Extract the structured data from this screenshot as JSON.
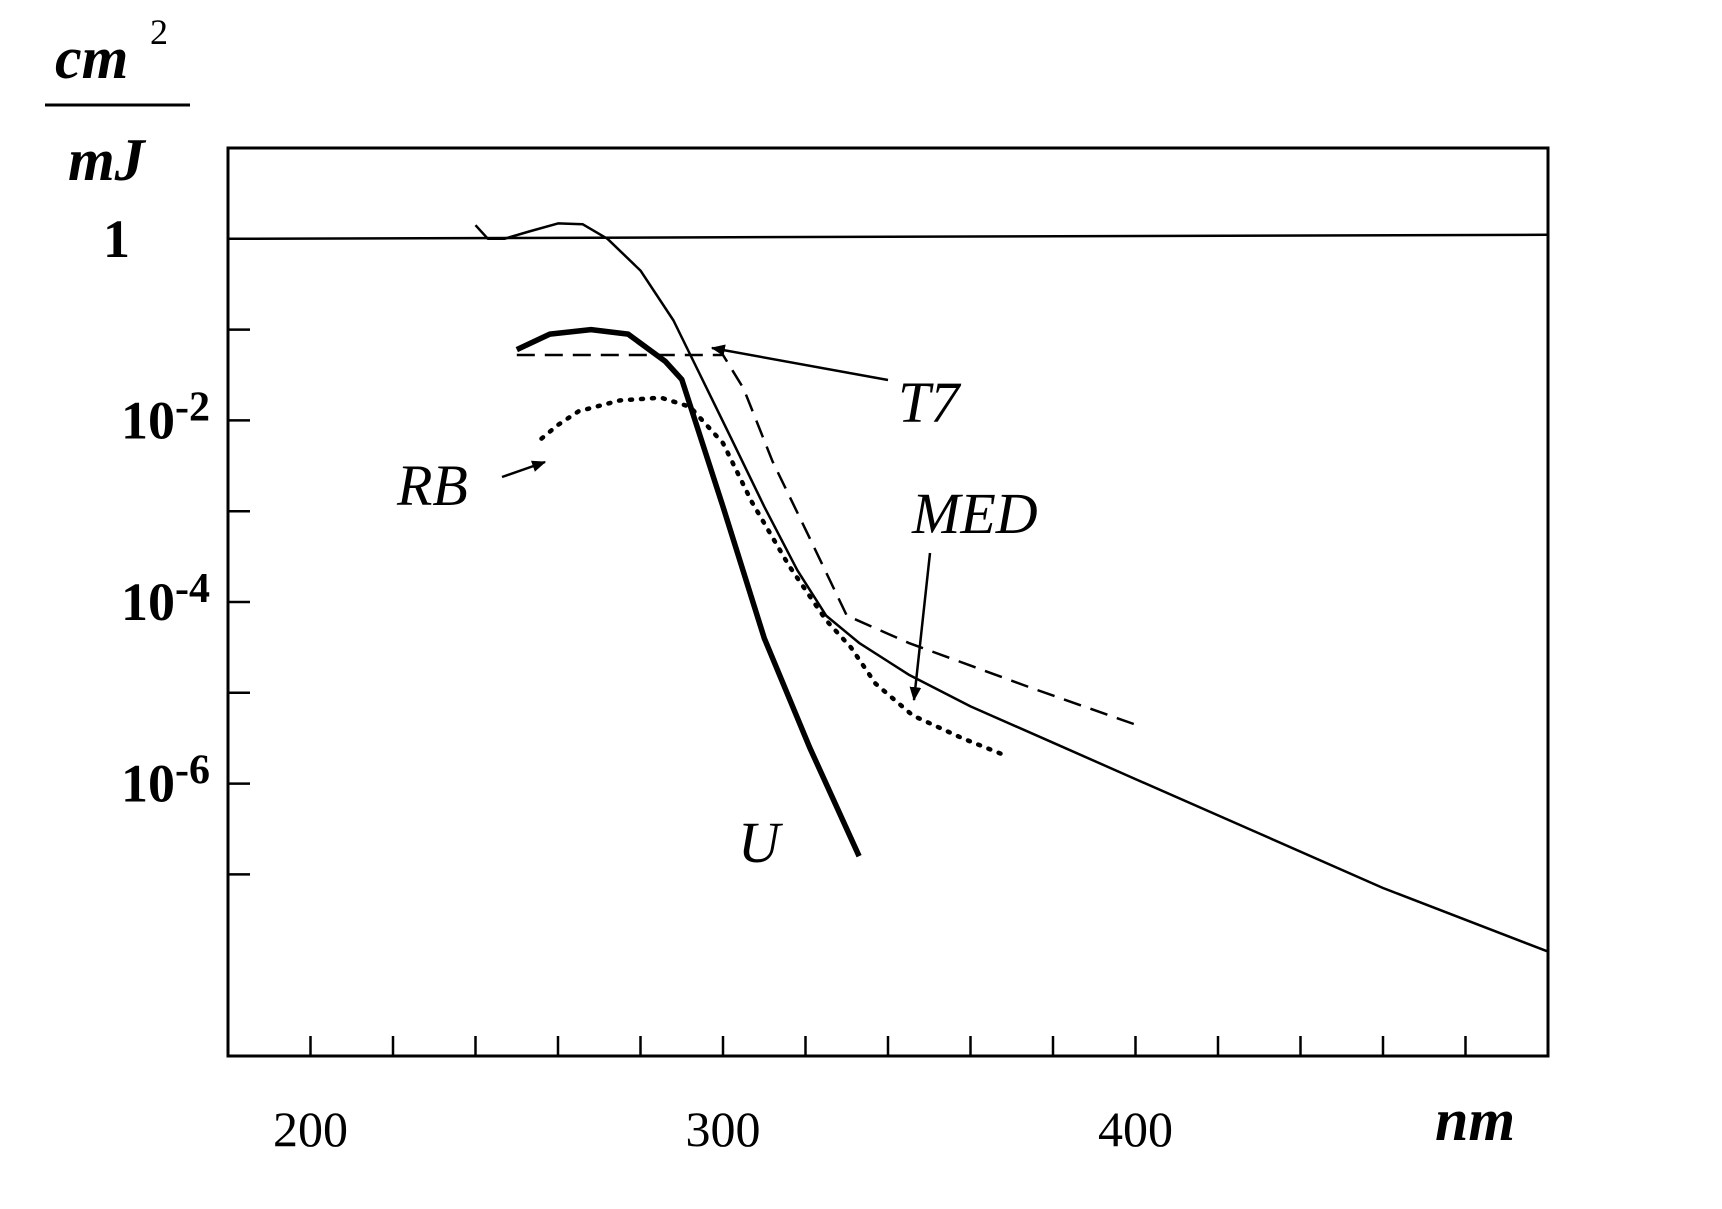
{
  "chart_data": {
    "type": "line",
    "title": "",
    "xlabel": "nm",
    "ylabel": {
      "numerator": "cm",
      "exponent": "2",
      "denominator": "mJ"
    },
    "xlim": [
      180,
      500
    ],
    "ylim_log10": [
      -9,
      1
    ],
    "y_scale": "log",
    "x_ticks": [
      {
        "value": 200,
        "label": "200"
      },
      {
        "value": 300,
        "label": "300"
      },
      {
        "value": 400,
        "label": "400"
      }
    ],
    "x_minor_ticks": [
      200,
      220,
      240,
      260,
      280,
      300,
      320,
      340,
      360,
      380,
      400,
      420,
      440,
      460,
      480
    ],
    "y_ticks": [
      {
        "log10": 0,
        "base": "1",
        "exp": ""
      },
      {
        "log10": -2,
        "base": "10",
        "exp": "-2"
      },
      {
        "log10": -4,
        "base": "10",
        "exp": "-4"
      },
      {
        "log10": -6,
        "base": "10",
        "exp": "-6"
      }
    ],
    "y_minor_ticks_log10": [
      -1,
      -3,
      -5,
      -7
    ],
    "reference_line_log10": 0,
    "grid": false,
    "series": [
      {
        "name": "T7",
        "style": "solid-thin",
        "x": [
          240,
          243,
          247,
          253,
          260,
          266,
          272,
          280,
          288,
          295,
          302,
          310,
          318,
          325,
          333,
          345,
          360,
          380,
          400,
          430,
          460,
          500
        ],
        "y_log10": [
          0.15,
          0.0,
          0.0,
          0.08,
          0.17,
          0.16,
          0.0,
          -0.35,
          -0.9,
          -1.55,
          -2.2,
          -2.95,
          -3.65,
          -4.15,
          -4.45,
          -4.8,
          -5.15,
          -5.55,
          -5.95,
          -6.55,
          -7.15,
          -7.85
        ]
      },
      {
        "name": "U",
        "style": "solid-thick",
        "x": [
          250,
          258,
          268,
          277,
          286,
          290,
          300,
          310,
          321,
          333
        ],
        "y_log10": [
          -1.22,
          -1.05,
          -1.0,
          -1.05,
          -1.35,
          -1.55,
          -2.95,
          -4.4,
          -5.6,
          -6.8
        ]
      },
      {
        "name": "RB",
        "style": "dotted",
        "x": [
          256,
          260,
          265,
          275,
          285,
          292,
          300,
          307,
          316,
          325,
          331,
          337,
          346,
          358,
          369
        ],
        "y_log10": [
          -2.2,
          -2.05,
          -1.9,
          -1.78,
          -1.75,
          -1.85,
          -2.25,
          -2.9,
          -3.6,
          -4.2,
          -4.5,
          -4.9,
          -5.25,
          -5.5,
          -5.7
        ]
      },
      {
        "name": "MED",
        "style": "dashed",
        "x": [
          250,
          270,
          287,
          300,
          305,
          312,
          320,
          330,
          345,
          360,
          375,
          400
        ],
        "y_log10": [
          -1.28,
          -1.28,
          -1.28,
          -1.28,
          -1.65,
          -2.45,
          -3.2,
          -4.15,
          -4.45,
          -4.7,
          -4.95,
          -5.35
        ]
      }
    ],
    "annotations": [
      {
        "text": "T7",
        "arrow": true
      },
      {
        "text": "RB",
        "arrow": true
      },
      {
        "text": "MED",
        "arrow": true
      },
      {
        "text": "U",
        "arrow": false
      }
    ]
  }
}
